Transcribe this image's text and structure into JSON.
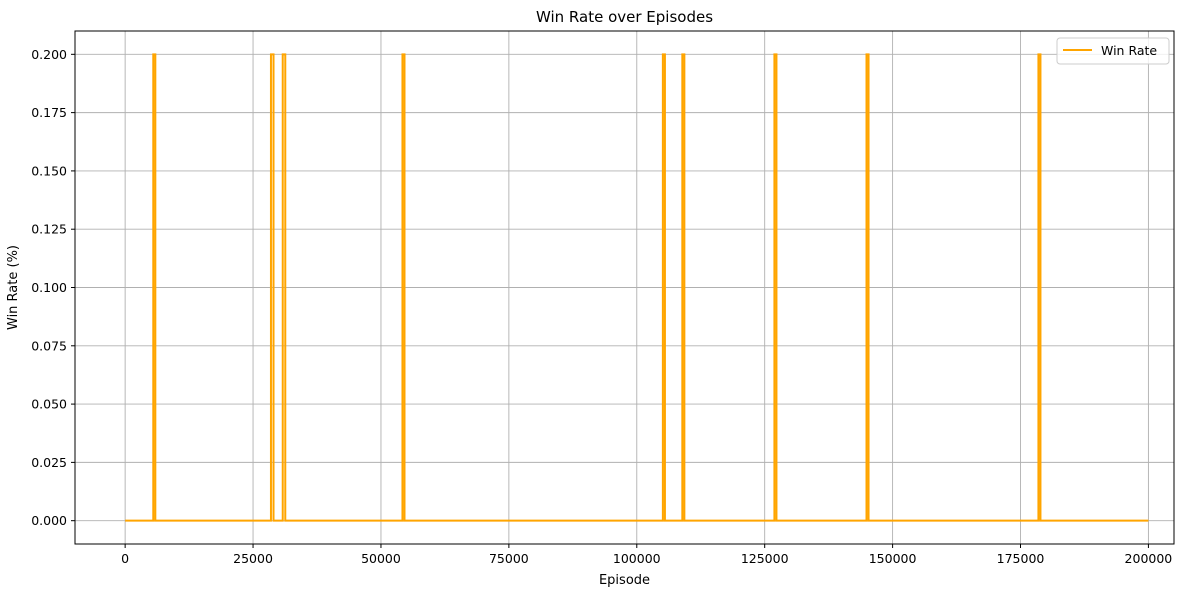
{
  "chart_data": {
    "type": "line",
    "title": "Win Rate over Episodes",
    "xlabel": "Episode",
    "ylabel": "Win Rate (%)",
    "xlim": [
      -9800,
      205000
    ],
    "ylim": [
      -0.01,
      0.21
    ],
    "x_ticks": [
      0,
      25000,
      50000,
      75000,
      100000,
      125000,
      150000,
      175000,
      200000
    ],
    "x_tick_labels": [
      "0",
      "25000",
      "50000",
      "75000",
      "100000",
      "125000",
      "150000",
      "175000",
      "200000"
    ],
    "y_ticks": [
      0.0,
      0.025,
      0.05,
      0.075,
      0.1,
      0.125,
      0.15,
      0.175,
      0.2
    ],
    "y_tick_labels": [
      "0.000",
      "0.025",
      "0.050",
      "0.075",
      "0.100",
      "0.125",
      "0.150",
      "0.175",
      "0.200"
    ],
    "grid": true,
    "legend_position": "top-right",
    "series": [
      {
        "name": "Win Rate",
        "color": "#FFA500",
        "baseline": 0.0,
        "spike_value": 0.2,
        "spike_ranges": [
          [
            5500,
            5900
          ],
          [
            28500,
            29000
          ],
          [
            30800,
            31300
          ],
          [
            54200,
            54600
          ],
          [
            105100,
            105500
          ],
          [
            108900,
            109300
          ],
          [
            126900,
            127300
          ],
          [
            144900,
            145300
          ],
          [
            178500,
            178900
          ]
        ],
        "x_start": 0,
        "x_end": 200000
      }
    ]
  }
}
